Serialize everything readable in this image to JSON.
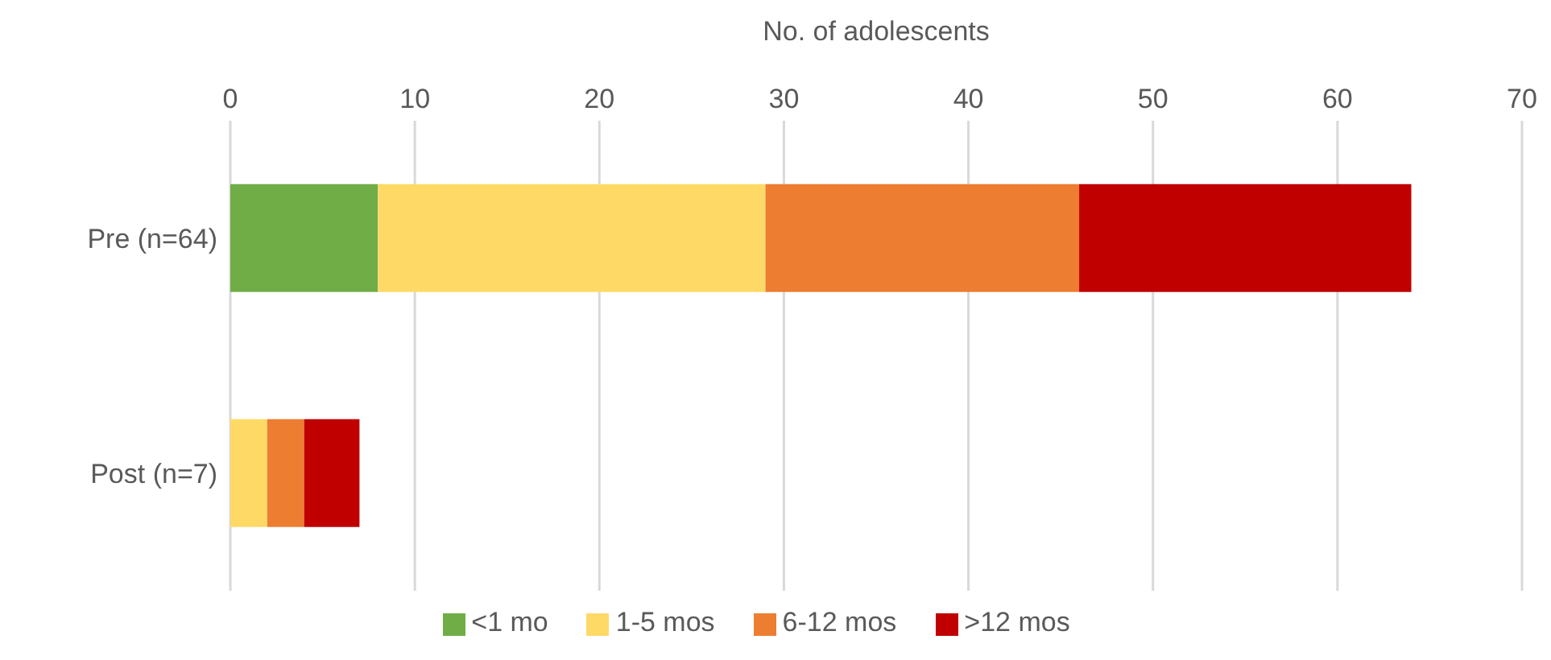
{
  "chart_data": {
    "type": "bar",
    "orientation": "horizontal",
    "stacked": true,
    "xlabel": "No. of adolescents",
    "categories": [
      "Pre (n=64)",
      "Post (n=7)"
    ],
    "series": [
      {
        "name": "<1 mo",
        "color": "#70ad47",
        "values": [
          8,
          0
        ]
      },
      {
        "name": "1-5 mos",
        "color": "#ffd966",
        "values": [
          21,
          2
        ]
      },
      {
        "name": "6-12 mos",
        "color": "#ed7d31",
        "values": [
          17,
          2
        ]
      },
      {
        "name": ">12 mos",
        "color": "#c00000",
        "values": [
          18,
          3
        ]
      }
    ],
    "xlim": [
      0,
      70
    ],
    "xticks": [
      0,
      10,
      20,
      30,
      40,
      50,
      60,
      70
    ],
    "grid": "x",
    "legend": "bottom"
  }
}
